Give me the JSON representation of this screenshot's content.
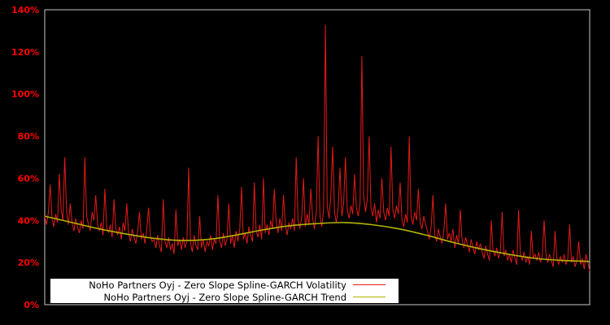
{
  "chart_data": {
    "type": "line",
    "title": "",
    "xlabel": "",
    "ylabel": "",
    "ylim": [
      0,
      140
    ],
    "ytick_step": 20,
    "ytick_labels": [
      "0%",
      "20%",
      "40%",
      "60%",
      "80%",
      "100%",
      "120%",
      "140%"
    ],
    "grid": false,
    "legend_position": "inside-bottom-left",
    "colors": {
      "background": "#000000",
      "frame": "#c8c8c8",
      "axis_labels": "#ff0000",
      "volatility_line": "#e41b17",
      "trend_line": "#b3b300",
      "legend_background": "#ffffff",
      "legend_text": "#000000"
    },
    "series": [
      {
        "name": "NoHo Partners Oyj - Zero Slope Spline-GARCH Volatility",
        "color": "#e41b17",
        "style": "noisy",
        "unit": "%",
        "values": [
          42,
          38,
          44,
          57,
          41,
          37,
          43,
          39,
          62,
          45,
          40,
          70,
          44,
          38,
          48,
          39,
          35,
          41,
          37,
          34,
          40,
          36,
          70,
          42,
          38,
          35,
          44,
          40,
          52,
          38,
          35,
          39,
          33,
          55,
          37,
          34,
          38,
          32,
          50,
          36,
          33,
          37,
          31,
          39,
          35,
          48,
          34,
          30,
          36,
          32,
          29,
          35,
          44,
          31,
          34,
          29,
          36,
          46,
          32,
          30,
          31,
          27,
          33,
          28,
          25,
          50,
          30,
          27,
          32,
          26,
          29,
          24,
          45,
          28,
          31,
          26,
          32,
          27,
          30,
          65,
          29,
          25,
          33,
          28,
          26,
          42,
          27,
          31,
          25,
          30,
          28,
          33,
          26,
          31,
          29,
          52,
          30,
          27,
          34,
          28,
          31,
          48,
          29,
          33,
          27,
          35,
          30,
          36,
          56,
          31,
          34,
          29,
          37,
          33,
          30,
          58,
          35,
          32,
          38,
          31,
          60,
          34,
          38,
          33,
          40,
          36,
          55,
          39,
          34,
          41,
          35,
          52,
          38,
          33,
          39,
          36,
          41,
          35,
          70,
          40,
          36,
          42,
          60,
          37,
          43,
          38,
          55,
          41,
          36,
          44,
          80,
          42,
          37,
          45,
          133,
          47,
          41,
          52,
          75,
          44,
          39,
          46,
          65,
          42,
          48,
          70,
          45,
          41,
          47,
          43,
          62,
          46,
          42,
          48,
          118,
          52,
          44,
          50,
          80,
          46,
          42,
          48,
          39,
          45,
          41,
          60,
          44,
          40,
          46,
          42,
          75,
          45,
          41,
          47,
          43,
          58,
          40,
          37,
          43,
          39,
          80,
          42,
          38,
          44,
          40,
          55,
          39,
          36,
          42,
          38,
          35,
          31,
          37,
          52,
          33,
          30,
          36,
          32,
          29,
          35,
          48,
          31,
          34,
          30,
          36,
          27,
          33,
          29,
          45,
          31,
          27,
          32,
          28,
          25,
          31,
          27,
          24,
          30,
          26,
          29,
          25,
          22,
          28,
          24,
          21,
          40,
          26,
          23,
          27,
          22,
          25,
          44,
          23,
          26,
          21,
          24,
          20,
          26,
          22,
          19,
          45,
          24,
          21,
          25,
          20,
          23,
          19,
          35,
          22,
          24,
          21,
          25,
          20,
          23,
          40,
          24,
          20,
          24,
          21,
          18,
          35,
          22,
          19,
          23,
          20,
          24,
          19,
          22,
          38,
          20,
          23,
          18,
          21,
          30,
          19,
          22,
          17,
          24,
          20,
          16
        ]
      },
      {
        "name": "NoHo Partners Oyj - Zero Slope Spline-GARCH Trend",
        "color": "#b3b300",
        "style": "smooth",
        "unit": "%",
        "keypoints": [
          [
            0.0,
            42.0
          ],
          [
            0.05,
            39.0
          ],
          [
            0.1,
            36.0
          ],
          [
            0.15,
            33.5
          ],
          [
            0.2,
            31.5
          ],
          [
            0.25,
            30.5
          ],
          [
            0.3,
            31.0
          ],
          [
            0.35,
            33.0
          ],
          [
            0.4,
            35.5
          ],
          [
            0.45,
            37.5
          ],
          [
            0.5,
            38.5
          ],
          [
            0.55,
            39.0
          ],
          [
            0.6,
            38.0
          ],
          [
            0.65,
            36.0
          ],
          [
            0.7,
            33.0
          ],
          [
            0.75,
            29.5
          ],
          [
            0.8,
            26.5
          ],
          [
            0.85,
            24.0
          ],
          [
            0.9,
            22.0
          ],
          [
            0.95,
            21.0
          ],
          [
            1.0,
            20.5
          ]
        ]
      }
    ]
  },
  "legend": {
    "volatility_label": "NoHo Partners Oyj - Zero Slope Spline-GARCH Volatility",
    "trend_label": "NoHo Partners Oyj - Zero Slope Spline-GARCH Trend"
  }
}
